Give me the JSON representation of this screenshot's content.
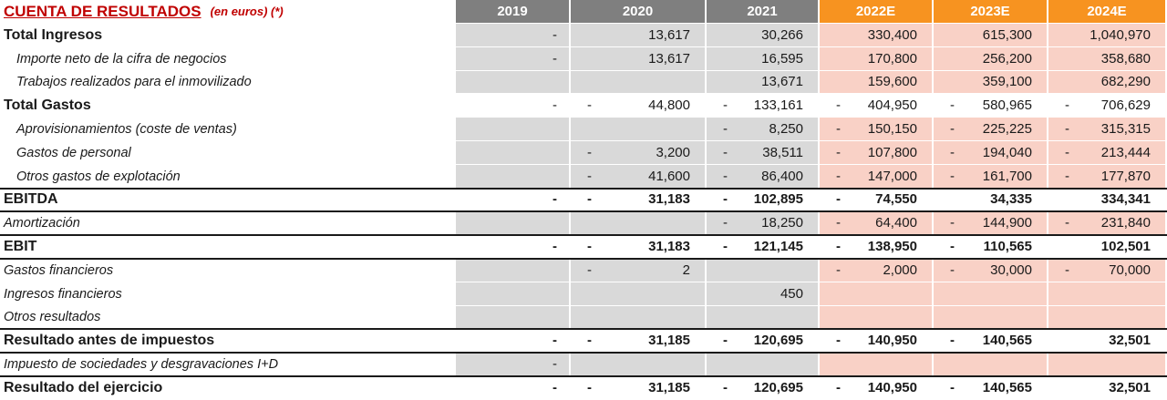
{
  "title": "CUENTA DE RESULTADOS",
  "subtitle": "(en euros)  (*)",
  "years": [
    {
      "label": "2019",
      "projected": false
    },
    {
      "label": "2020",
      "projected": false
    },
    {
      "label": "2021",
      "projected": false
    },
    {
      "label": "2022E",
      "projected": true
    },
    {
      "label": "2023E",
      "projected": true
    },
    {
      "label": "2024E",
      "projected": true
    }
  ],
  "colors": {
    "historical_header": "#7f7f7f",
    "projected_header": "#f79320",
    "historical_fill": "#d9d9d9",
    "projected_fill": "#f9d1c6",
    "title": "#c00000"
  },
  "rows": [
    {
      "id": "total-ingresos",
      "label": "Total Ingresos",
      "style": "bold",
      "fill": true,
      "cells": [
        {
          "dash": true,
          "v": ""
        },
        {
          "v": "13,617"
        },
        {
          "v": "30,266"
        },
        {
          "v": "330,400"
        },
        {
          "v": "615,300"
        },
        {
          "v": "1,040,970"
        }
      ]
    },
    {
      "id": "importe-neto",
      "label": "Importe neto de la cifra de negocios",
      "style": "italic-indent",
      "fill": true,
      "cells": [
        {
          "dash": true,
          "v": ""
        },
        {
          "v": "13,617"
        },
        {
          "v": "16,595"
        },
        {
          "v": "170,800"
        },
        {
          "v": "256,200"
        },
        {
          "v": "358,680"
        }
      ]
    },
    {
      "id": "trabajos-realizados",
      "label": "Trabajos realizados para el inmovilizado",
      "style": "italic-indent",
      "fill": true,
      "cells": [
        {
          "v": ""
        },
        {
          "v": ""
        },
        {
          "v": "13,671"
        },
        {
          "v": "159,600"
        },
        {
          "v": "359,100"
        },
        {
          "v": "682,290"
        }
      ]
    },
    {
      "id": "total-gastos",
      "label": "Total Gastos",
      "style": "bold",
      "fill": false,
      "cells": [
        {
          "dash": true,
          "v": ""
        },
        {
          "dash": true,
          "v": "44,800"
        },
        {
          "dash": true,
          "v": "133,161"
        },
        {
          "dash": true,
          "v": "404,950"
        },
        {
          "dash": true,
          "v": "580,965"
        },
        {
          "dash": true,
          "v": "706,629"
        }
      ]
    },
    {
      "id": "aprovisionamientos",
      "label": "Aprovisionamientos (coste de ventas)",
      "style": "italic-indent",
      "fill": true,
      "cells": [
        {
          "v": ""
        },
        {
          "v": ""
        },
        {
          "dash": true,
          "v": "8,250"
        },
        {
          "dash": true,
          "v": "150,150"
        },
        {
          "dash": true,
          "v": "225,225"
        },
        {
          "dash": true,
          "v": "315,315"
        }
      ]
    },
    {
      "id": "gastos-personal",
      "label": "Gastos de personal",
      "style": "italic-indent",
      "fill": true,
      "cells": [
        {
          "v": ""
        },
        {
          "dash": true,
          "v": "3,200"
        },
        {
          "dash": true,
          "v": "38,511"
        },
        {
          "dash": true,
          "v": "107,800"
        },
        {
          "dash": true,
          "v": "194,040"
        },
        {
          "dash": true,
          "v": "213,444"
        }
      ]
    },
    {
      "id": "otros-gastos-explotacion",
      "label": "Otros gastos de explotación",
      "style": "italic-indent",
      "fill": true,
      "cells": [
        {
          "v": ""
        },
        {
          "dash": true,
          "v": "41,600"
        },
        {
          "dash": true,
          "v": "86,400"
        },
        {
          "dash": true,
          "v": "147,000"
        },
        {
          "dash": true,
          "v": "161,700"
        },
        {
          "dash": true,
          "v": "177,870"
        }
      ]
    },
    {
      "id": "ebitda",
      "label": "EBITDA",
      "style": "total",
      "fill": false,
      "rule_above": true,
      "cells": [
        {
          "dash": true,
          "v": ""
        },
        {
          "dash": true,
          "v": "31,183"
        },
        {
          "dash": true,
          "v": "102,895"
        },
        {
          "dash": true,
          "v": "74,550"
        },
        {
          "v": "34,335"
        },
        {
          "v": "334,341"
        }
      ]
    },
    {
      "id": "amortizacion",
      "label": "Amortización",
      "style": "italic",
      "fill": true,
      "rule_above": true,
      "cells": [
        {
          "v": ""
        },
        {
          "v": ""
        },
        {
          "dash": true,
          "v": "18,250"
        },
        {
          "dash": true,
          "v": "64,400"
        },
        {
          "dash": true,
          "v": "144,900"
        },
        {
          "dash": true,
          "v": "231,840"
        }
      ]
    },
    {
      "id": "ebit",
      "label": "EBIT",
      "style": "total",
      "fill": false,
      "rule_above": true,
      "cells": [
        {
          "dash": true,
          "v": ""
        },
        {
          "dash": true,
          "v": "31,183"
        },
        {
          "dash": true,
          "v": "121,145"
        },
        {
          "dash": true,
          "v": "138,950"
        },
        {
          "dash": true,
          "v": "110,565"
        },
        {
          "v": "102,501"
        }
      ]
    },
    {
      "id": "gastos-financieros",
      "label": "Gastos financieros",
      "style": "italic",
      "fill": true,
      "rule_above": true,
      "cells": [
        {
          "v": ""
        },
        {
          "dash": true,
          "v": "2"
        },
        {
          "v": ""
        },
        {
          "dash": true,
          "v": "2,000"
        },
        {
          "dash": true,
          "v": "30,000"
        },
        {
          "dash": true,
          "v": "70,000"
        }
      ]
    },
    {
      "id": "ingresos-financieros",
      "label": "Ingresos financieros",
      "style": "italic",
      "fill": true,
      "cells": [
        {
          "v": ""
        },
        {
          "v": ""
        },
        {
          "v": "450"
        },
        {
          "v": ""
        },
        {
          "v": ""
        },
        {
          "v": ""
        }
      ]
    },
    {
      "id": "otros-resultados",
      "label": "Otros resultados",
      "style": "italic",
      "fill": true,
      "cells": [
        {
          "v": ""
        },
        {
          "v": ""
        },
        {
          "v": ""
        },
        {
          "v": ""
        },
        {
          "v": ""
        },
        {
          "v": ""
        }
      ]
    },
    {
      "id": "resultado-antes-impuestos",
      "label": "Resultado antes de impuestos",
      "style": "total",
      "fill": false,
      "rule_above": true,
      "cells": [
        {
          "dash": true,
          "v": ""
        },
        {
          "dash": true,
          "v": "31,185"
        },
        {
          "dash": true,
          "v": "120,695"
        },
        {
          "dash": true,
          "v": "140,950"
        },
        {
          "dash": true,
          "v": "140,565"
        },
        {
          "v": "32,501"
        }
      ]
    },
    {
      "id": "impuesto-sociedades",
      "label": "Impuesto de sociedades y desgravaciones I+D",
      "style": "italic",
      "fill": true,
      "rule_above": true,
      "cells": [
        {
          "dash": true,
          "v": ""
        },
        {
          "v": ""
        },
        {
          "v": ""
        },
        {
          "v": ""
        },
        {
          "v": ""
        },
        {
          "v": ""
        }
      ]
    },
    {
      "id": "resultado-ejercicio",
      "label": "Resultado del ejercicio",
      "style": "total",
      "fill": false,
      "rule_above": true,
      "cells": [
        {
          "dash": true,
          "v": ""
        },
        {
          "dash": true,
          "v": "31,185"
        },
        {
          "dash": true,
          "v": "120,695"
        },
        {
          "dash": true,
          "v": "140,950"
        },
        {
          "dash": true,
          "v": "140,565"
        },
        {
          "v": "32,501"
        }
      ]
    }
  ]
}
